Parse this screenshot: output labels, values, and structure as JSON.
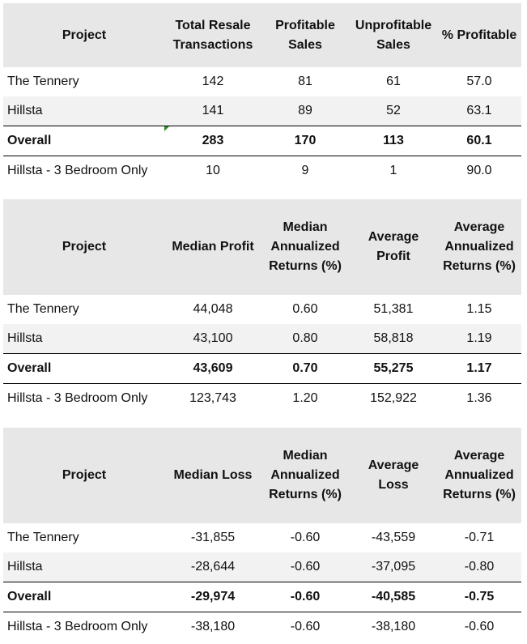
{
  "tables": [
    {
      "headers": [
        "Project",
        "Total Resale Transactions",
        "Profitable Sales",
        "Unprofitable Sales",
        "% Profitable"
      ],
      "rows": [
        [
          "The Tennery",
          "142",
          "81",
          "61",
          "57.0"
        ],
        [
          "Hillsta",
          "141",
          "89",
          "52",
          "63.1"
        ],
        [
          "Overall",
          "283",
          "170",
          "113",
          "60.1"
        ],
        [
          "Hillsta - 3 Bedroom Only",
          "10",
          "9",
          "1",
          "90.0"
        ]
      ]
    },
    {
      "headers": [
        "Project",
        "Median Profit",
        "Median Annualized Returns (%)",
        "Average Profit",
        "Average Annualized Returns (%)"
      ],
      "rows": [
        [
          "The Tennery",
          "44,048",
          "0.60",
          "51,381",
          "1.15"
        ],
        [
          "Hillsta",
          "43,100",
          "0.80",
          "58,818",
          "1.19"
        ],
        [
          "Overall",
          "43,609",
          "0.70",
          "55,275",
          "1.17"
        ],
        [
          "Hillsta - 3 Bedroom Only",
          "123,743",
          "1.20",
          "152,922",
          "1.36"
        ]
      ]
    },
    {
      "headers": [
        "Project",
        "Median Loss",
        "Median Annualized Returns (%)",
        "Average Loss",
        "Average Annualized Returns (%)"
      ],
      "rows": [
        [
          "The Tennery",
          "-31,855",
          "-0.60",
          "-43,559",
          "-0.71"
        ],
        [
          "Hillsta",
          "-28,644",
          "-0.60",
          "-37,095",
          "-0.80"
        ],
        [
          "Overall",
          "-29,974",
          "-0.60",
          "-40,585",
          "-0.75"
        ],
        [
          "Hillsta - 3 Bedroom Only",
          "-38,180",
          "-0.60",
          "-38,180",
          "-0.60"
        ]
      ]
    }
  ],
  "colors": {
    "header_bg": "#e7e7e7",
    "band_bg": "#f2f2f2",
    "cell_marker": "#2e8b2e"
  }
}
